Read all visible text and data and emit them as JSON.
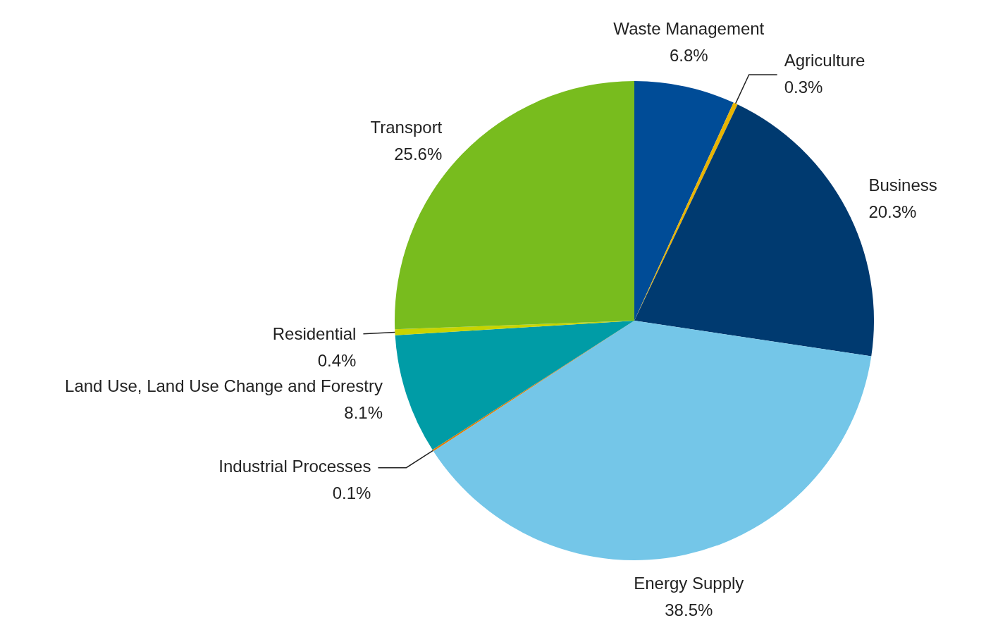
{
  "chart_data": {
    "type": "pie",
    "categories": [
      "Waste Management",
      "Agriculture",
      "Business",
      "Energy Supply",
      "Industrial Processes",
      "Land Use, Land Use Change and Forestry",
      "Residential",
      "Transport"
    ],
    "values": [
      6.8,
      0.3,
      20.3,
      38.5,
      0.1,
      8.1,
      0.4,
      25.6
    ],
    "value_labels": [
      "6.8%",
      "0.3%",
      "20.3%",
      "38.5%",
      "0.1%",
      "8.1%",
      "0.4%",
      "25.6%"
    ],
    "colors": [
      "#004c97",
      "#e8b400",
      "#003a70",
      "#74c6e8",
      "#e07b00",
      "#009ca6",
      "#c8d400",
      "#78bc1e"
    ],
    "legend": false
  }
}
